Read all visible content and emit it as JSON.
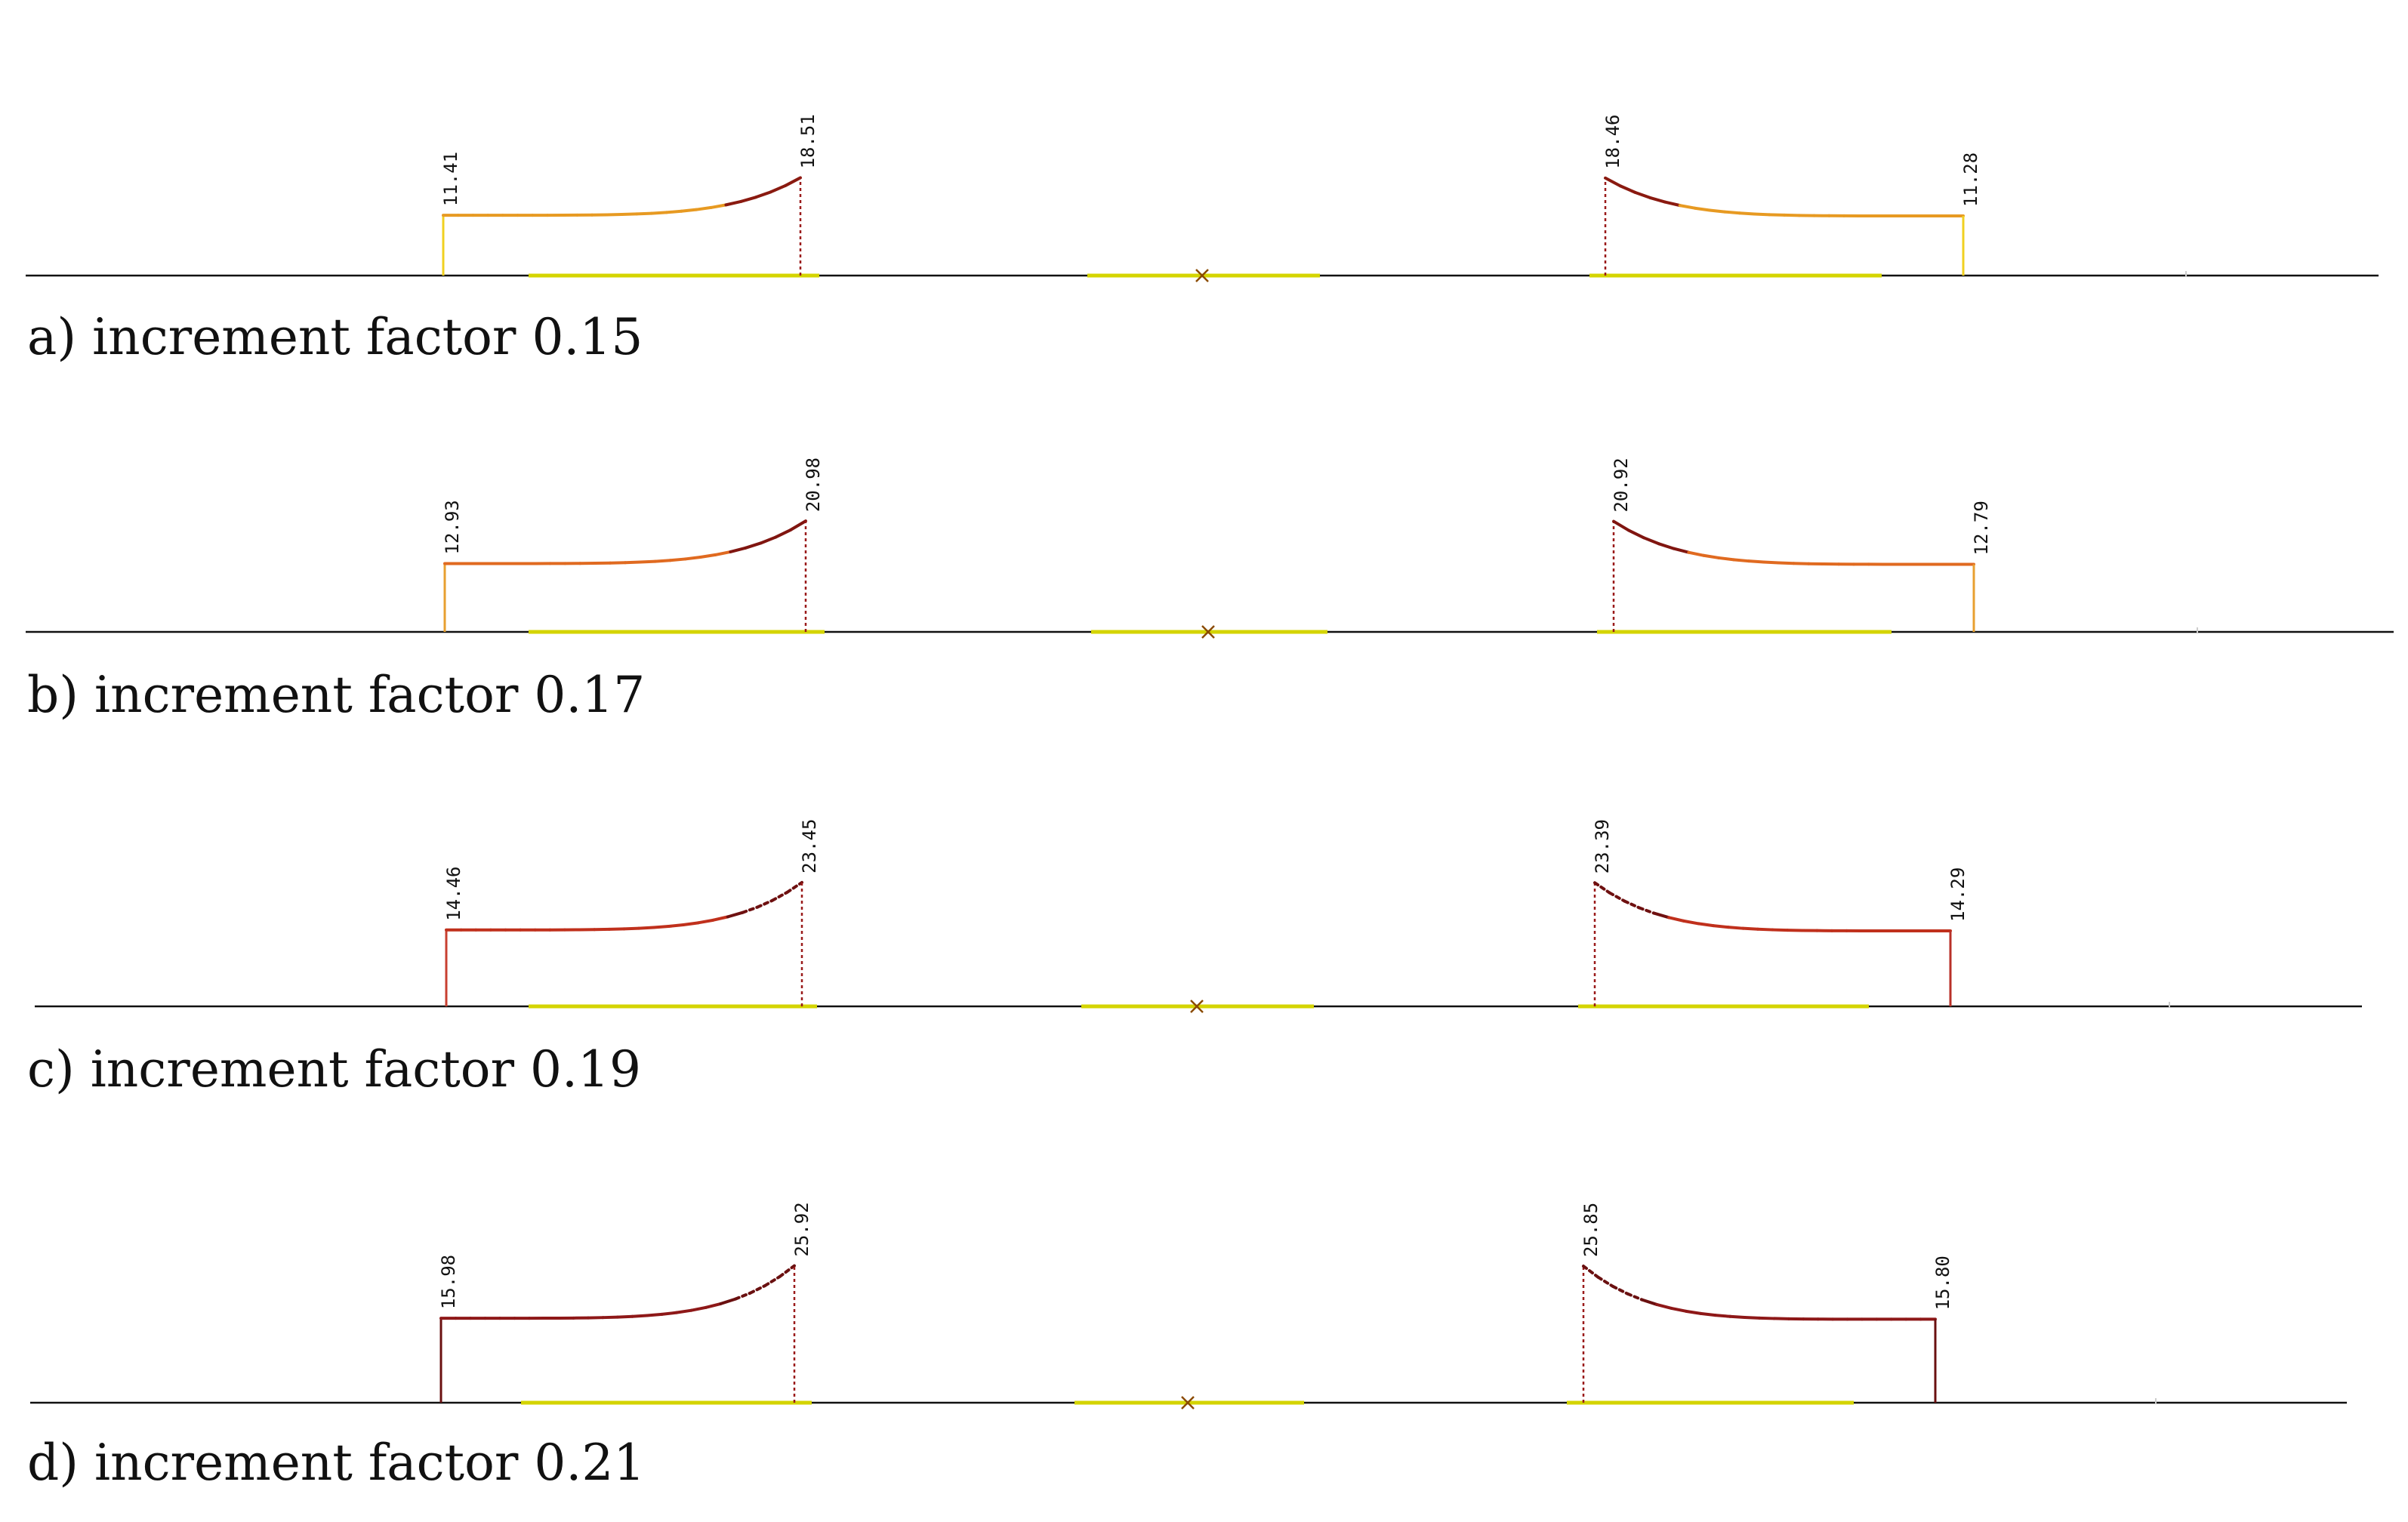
{
  "colors": {
    "baseline": "#111111",
    "support_bar": "#d4d400",
    "support_mark": "#8a4a00",
    "label_text": "#111111"
  },
  "panels": [
    {
      "id": "a",
      "caption": "a) increment factor 0.15",
      "increment_factor": 0.15,
      "left_diagram": {
        "start_value": "11.41",
        "peak_value": "18.51",
        "line_color": "#e79a22",
        "end_color": "#f0d020",
        "peak_color": "#8a1a10",
        "dotted_peak_segment": false
      },
      "right_diagram": {
        "peak_value": "18.46",
        "end_value": "11.28",
        "line_color": "#e79a22",
        "end_color": "#f0d020",
        "peak_color": "#8a1a10",
        "dotted_peak_segment": false
      }
    },
    {
      "id": "b",
      "caption": "b) increment factor 0.17",
      "increment_factor": 0.17,
      "left_diagram": {
        "start_value": "12.93",
        "peak_value": "20.98",
        "line_color": "#e06a20",
        "end_color": "#e8a030",
        "peak_color": "#801510",
        "dotted_peak_segment": false
      },
      "right_diagram": {
        "peak_value": "20.92",
        "end_value": "12.79",
        "line_color": "#e06a20",
        "end_color": "#e8a030",
        "peak_color": "#801510",
        "dotted_peak_segment": false
      }
    },
    {
      "id": "c",
      "caption": "c) increment factor 0.19",
      "increment_factor": 0.19,
      "left_diagram": {
        "start_value": "14.46",
        "peak_value": "23.45",
        "line_color": "#c0301c",
        "end_color": "#c84030",
        "peak_color": "#6e1010",
        "dotted_peak_segment": true
      },
      "right_diagram": {
        "peak_value": "23.39",
        "end_value": "14.29",
        "line_color": "#c0301c",
        "end_color": "#b83028",
        "peak_color": "#6e1010",
        "dotted_peak_segment": true
      }
    },
    {
      "id": "d",
      "caption": "d) increment factor 0.21",
      "increment_factor": 0.21,
      "left_diagram": {
        "start_value": "15.98",
        "peak_value": "25.92",
        "line_color": "#8e1818",
        "end_color": "#6a1010",
        "peak_color": "#6a1010",
        "dotted_peak_segment": true
      },
      "right_diagram": {
        "peak_value": "25.85",
        "end_value": "15.80",
        "line_color": "#8e1818",
        "end_color": "#6a1010",
        "peak_color": "#6a1010",
        "dotted_peak_segment": true
      }
    }
  ]
}
